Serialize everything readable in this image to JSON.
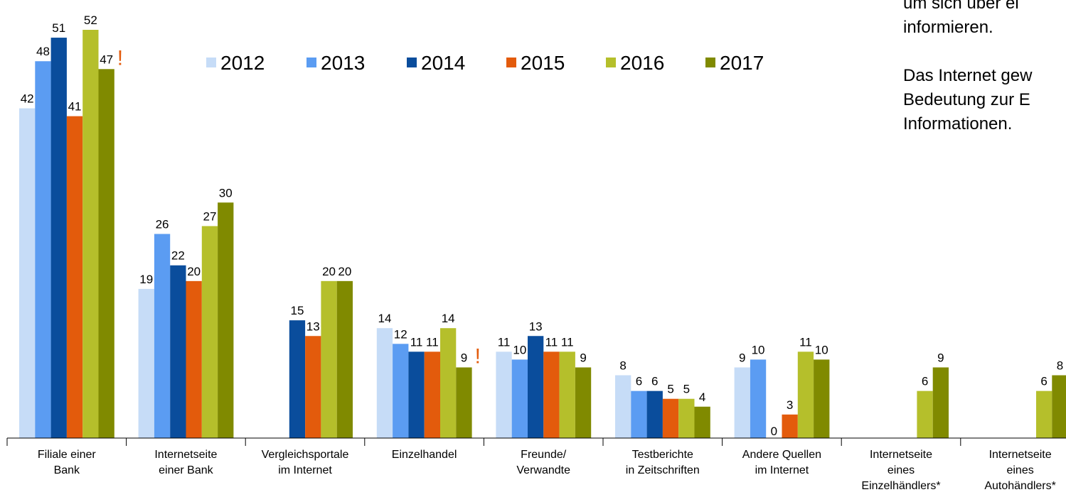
{
  "chart_data": {
    "type": "bar",
    "categories": [
      [
        "Filiale einer",
        "Bank"
      ],
      [
        "Internetseite",
        "einer Bank"
      ],
      [
        "Vergleichsportale",
        "im Internet"
      ],
      [
        "Einzelhandel"
      ],
      [
        "Freunde/",
        "Verwandte"
      ],
      [
        "Testberichte",
        "in Zeitschriften"
      ],
      [
        "Andere Quellen",
        "im Internet"
      ],
      [
        "Internetseite",
        "eines",
        "Einzelhändlers*"
      ],
      [
        "Internetseite",
        "eines",
        "Autohändlers*"
      ]
    ],
    "series": [
      {
        "name": "2012",
        "color": "#c6dcf7",
        "values": [
          42,
          19,
          null,
          14,
          11,
          8,
          9,
          null,
          null
        ]
      },
      {
        "name": "2013",
        "color": "#5b9cf2",
        "values": [
          48,
          26,
          null,
          12,
          10,
          6,
          10,
          null,
          null
        ]
      },
      {
        "name": "2014",
        "color": "#0a4d9c",
        "values": [
          51,
          22,
          15,
          11,
          13,
          6,
          0,
          null,
          null
        ]
      },
      {
        "name": "2015",
        "color": "#e35b0c",
        "values": [
          41,
          20,
          13,
          11,
          11,
          5,
          3,
          null,
          null
        ]
      },
      {
        "name": "2016",
        "color": "#b5bf2b",
        "values": [
          52,
          27,
          20,
          14,
          11,
          5,
          11,
          6,
          6
        ]
      },
      {
        "name": "2017",
        "color": "#808a00",
        "values": [
          47,
          30,
          20,
          9,
          9,
          4,
          10,
          9,
          8
        ]
      }
    ],
    "ylim": [
      0,
      52
    ],
    "annotations": [
      "!",
      "!"
    ],
    "side_text": [
      "um sich über ei",
      "informieren.",
      "Das Internet gew",
      "Bedeutung zur E",
      "Informationen."
    ]
  }
}
